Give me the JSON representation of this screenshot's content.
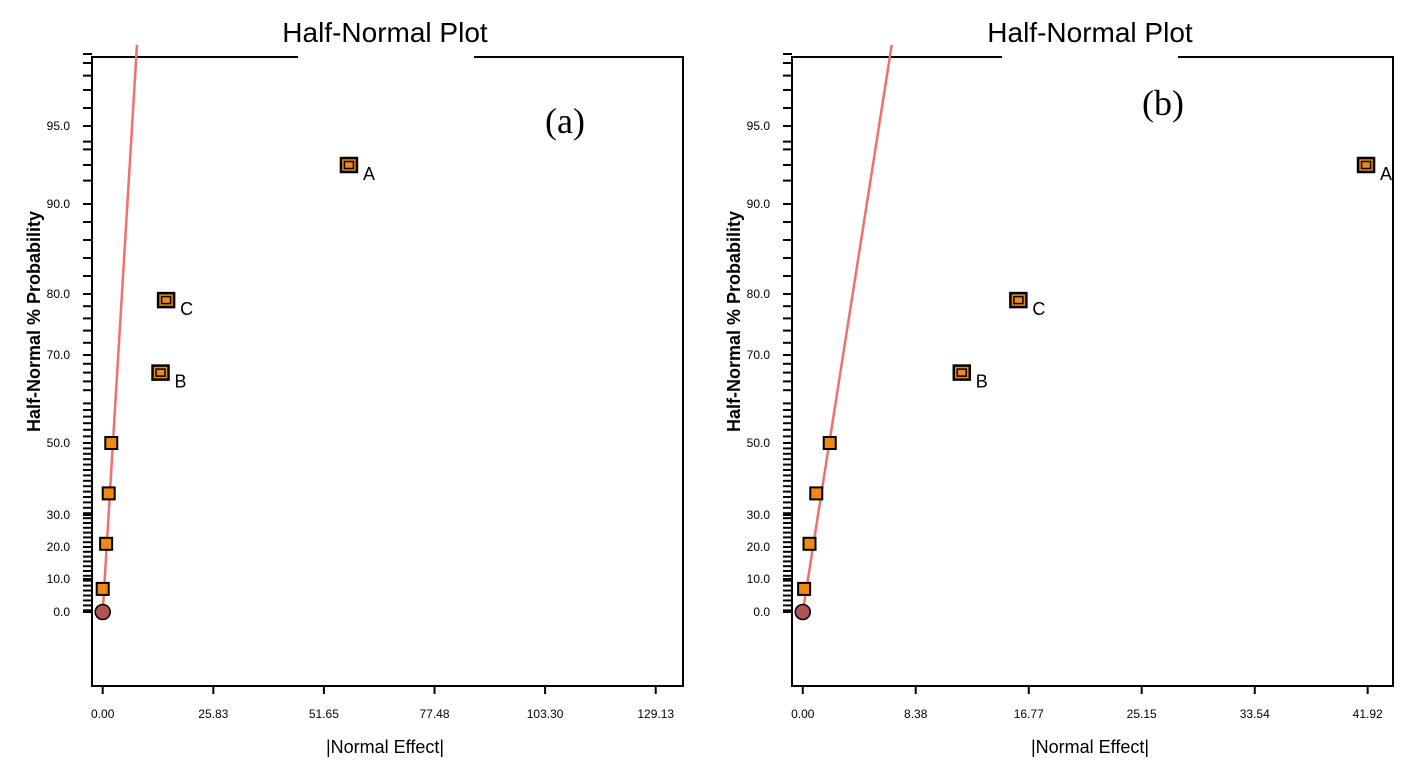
{
  "chart_data": [
    {
      "type": "scatter",
      "title": "Half-Normal Plot",
      "panel_label": "(a)",
      "xlabel": "|Normal Effect|",
      "ylabel": "Half-Normal % Probability",
      "xlim": [
        -2.5,
        135.5
      ],
      "x_ticks": [
        "0.00",
        "25.83",
        "51.65",
        "77.48",
        "103.30",
        "129.13"
      ],
      "y_ticks": [
        "0.0",
        "10.0",
        "20.0",
        "30.0",
        "50.0",
        "70.0",
        "80.0",
        "90.0",
        "95.0"
      ],
      "fit_line": {
        "x": [
          0.0,
          8.0
        ],
        "y": [
          0.0,
          99.5
        ]
      },
      "points": [
        {
          "x": 0.0,
          "y": 0.0,
          "label": "",
          "kind": "circle"
        },
        {
          "x": 0.0,
          "y": 7.0,
          "label": "",
          "kind": "square"
        },
        {
          "x": 0.8,
          "y": 21.0,
          "label": "",
          "kind": "square"
        },
        {
          "x": 1.4,
          "y": 36.0,
          "label": "",
          "kind": "square"
        },
        {
          "x": 2.0,
          "y": 50.0,
          "label": "",
          "kind": "square"
        },
        {
          "x": 13.5,
          "y": 66.0,
          "label": "B",
          "kind": "effect"
        },
        {
          "x": 14.8,
          "y": 79.0,
          "label": "C",
          "kind": "effect"
        },
        {
          "x": 57.5,
          "y": 92.5,
          "label": "A",
          "kind": "effect"
        }
      ]
    },
    {
      "type": "scatter",
      "title": "Half-Normal Plot",
      "panel_label": "(b)",
      "xlabel": "|Normal Effect|",
      "ylabel": "Half-Normal % Probability",
      "xlim": [
        -0.8,
        43.8
      ],
      "x_ticks": [
        "0.00",
        "8.38",
        "16.77",
        "25.15",
        "33.54",
        "41.92"
      ],
      "y_ticks": [
        "0.0",
        "10.0",
        "20.0",
        "30.0",
        "50.0",
        "70.0",
        "80.0",
        "90.0",
        "95.0"
      ],
      "fit_line": {
        "x": [
          0.0,
          6.6
        ],
        "y": [
          0.0,
          99.5
        ]
      },
      "points": [
        {
          "x": 0.0,
          "y": 0.0,
          "label": "",
          "kind": "circle"
        },
        {
          "x": 0.1,
          "y": 7.0,
          "label": "",
          "kind": "square"
        },
        {
          "x": 0.5,
          "y": 21.0,
          "label": "",
          "kind": "square"
        },
        {
          "x": 1.0,
          "y": 36.0,
          "label": "",
          "kind": "square"
        },
        {
          "x": 2.0,
          "y": 50.0,
          "label": "",
          "kind": "square"
        },
        {
          "x": 11.8,
          "y": 66.0,
          "label": "B",
          "kind": "effect"
        },
        {
          "x": 16.0,
          "y": 79.0,
          "label": "C",
          "kind": "effect"
        },
        {
          "x": 41.8,
          "y": 92.5,
          "label": "A",
          "kind": "effect"
        }
      ]
    }
  ]
}
